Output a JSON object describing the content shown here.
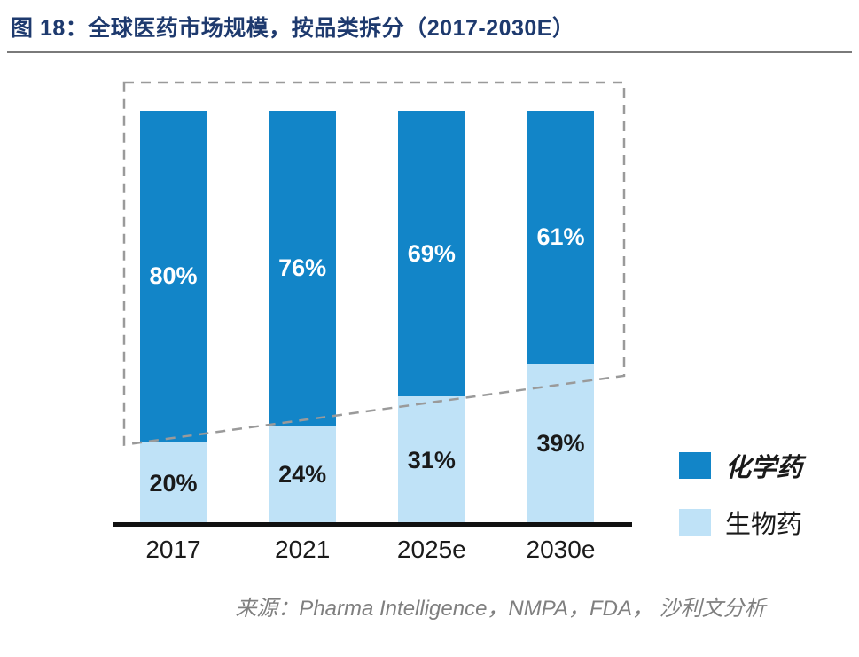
{
  "title": "图 18：全球医药市场规模，按品类拆分（2017-2030E）",
  "source": "来源：Pharma Intelligence，NMPA，FDA， 沙利文分析",
  "colors": {
    "chemical": "#1285c8",
    "biologic": "#bfe2f7",
    "title_text": "#1e3a6e",
    "dashed_outline": "#9a9a9a",
    "axis": "#111111",
    "source_text": "#7f7f7f"
  },
  "legend": {
    "items": [
      {
        "label": "化学药",
        "color": "#1285c8",
        "emphasis": true
      },
      {
        "label": "生物药",
        "color": "#bfe2f7",
        "emphasis": false
      }
    ]
  },
  "chart_data": {
    "type": "bar",
    "stacked": true,
    "unit": "%",
    "title": "图 18：全球医药市场规模，按品类拆分（2017-2030E）",
    "categories": [
      "2017",
      "2021",
      "2025e",
      "2030e"
    ],
    "series": [
      {
        "name": "化学药",
        "values": [
          80,
          76,
          69,
          61
        ],
        "color": "#1285c8",
        "label_color": "#ffffff"
      },
      {
        "name": "生物药",
        "values": [
          20,
          24,
          31,
          39
        ],
        "color": "#bfe2f7",
        "label_color": "#1a1a1a"
      }
    ],
    "ylim": [
      0,
      100
    ],
    "legend_position": "right",
    "annotations": [
      "dashed gray trapezoid outlining the shrinking chemical-drug share from 2017 to 2030E"
    ]
  }
}
